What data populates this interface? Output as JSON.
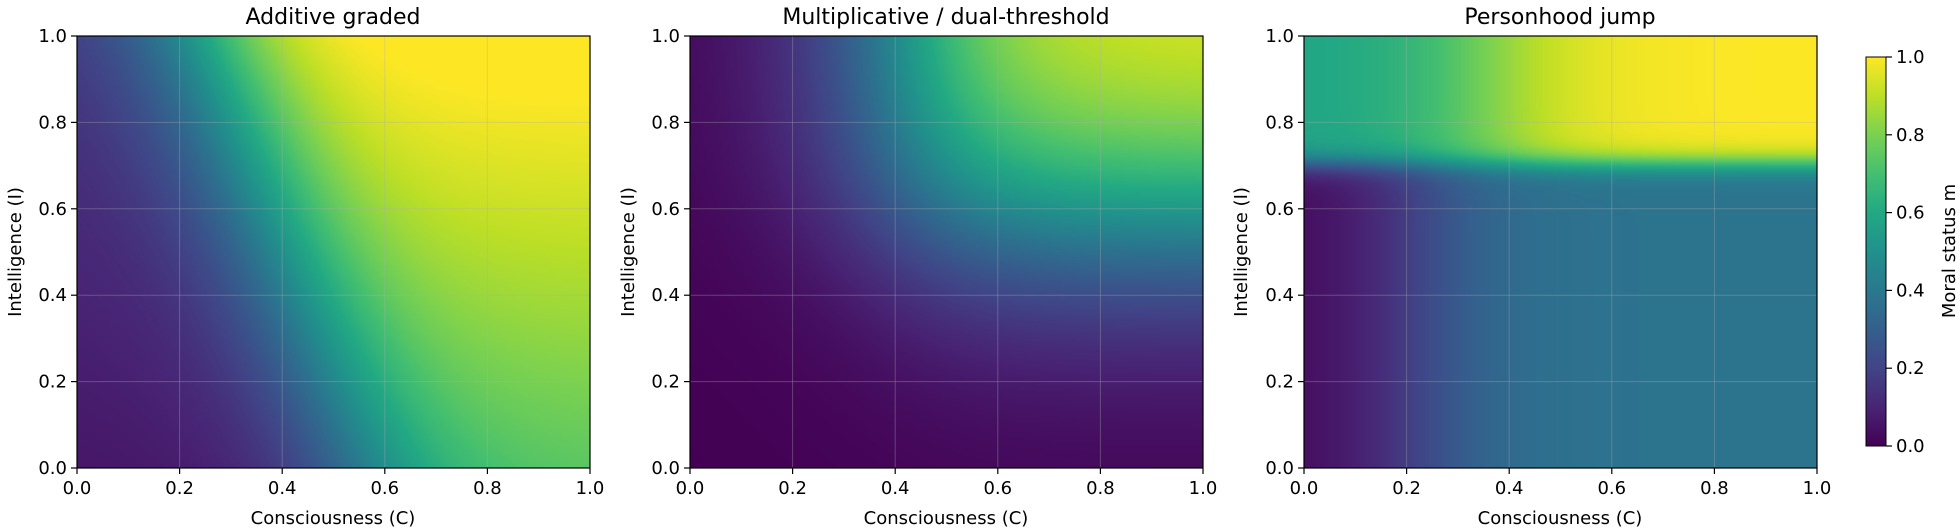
{
  "chart_data": {
    "type": "heatmap",
    "colormap": "viridis",
    "grid": true,
    "panels": [
      {
        "title": "Additive graded",
        "xlabel": "Consciousness (C)",
        "ylabel": "Intelligence (I)",
        "xlim": [
          0,
          1
        ],
        "ylim": [
          0,
          1
        ],
        "x_ticks": [
          "0.0",
          "0.2",
          "0.4",
          "0.6",
          "0.8",
          "1.0"
        ],
        "y_ticks": [
          "0.0",
          "0.2",
          "0.4",
          "0.6",
          "0.8",
          "1.0"
        ],
        "model": "additive_graded",
        "sample_values": [
          {
            "C": 0.0,
            "I": 0.0,
            "m": 0.08
          },
          {
            "C": 0.0,
            "I": 1.0,
            "m": 0.38
          },
          {
            "C": 0.5,
            "I": 0.2,
            "m": 0.55
          },
          {
            "C": 1.0,
            "I": 0.0,
            "m": 0.75
          },
          {
            "C": 1.0,
            "I": 1.0,
            "m": 1.0
          }
        ]
      },
      {
        "title": "Multiplicative / dual-threshold",
        "xlabel": "Consciousness (C)",
        "ylabel": "Intelligence (I)",
        "xlim": [
          0,
          1
        ],
        "ylim": [
          0,
          1
        ],
        "x_ticks": [
          "0.0",
          "0.2",
          "0.4",
          "0.6",
          "0.8",
          "1.0"
        ],
        "y_ticks": [
          "0.0",
          "0.2",
          "0.4",
          "0.6",
          "0.8",
          "1.0"
        ],
        "model": "multiplicative_dual_threshold",
        "sample_values": [
          {
            "C": 0.0,
            "I": 0.0,
            "m": 0.0
          },
          {
            "C": 0.0,
            "I": 1.0,
            "m": 0.05
          },
          {
            "C": 1.0,
            "I": 0.0,
            "m": 0.05
          },
          {
            "C": 1.0,
            "I": 0.5,
            "m": 0.45
          },
          {
            "C": 1.0,
            "I": 1.0,
            "m": 0.95
          }
        ]
      },
      {
        "title": "Personhood jump",
        "xlabel": "Consciousness (C)",
        "ylabel": "Intelligence (I)",
        "xlim": [
          0,
          1
        ],
        "ylim": [
          0,
          1
        ],
        "x_ticks": [
          "0.0",
          "0.2",
          "0.4",
          "0.6",
          "0.8",
          "1.0"
        ],
        "y_ticks": [
          "0.0",
          "0.2",
          "0.4",
          "0.6",
          "0.8",
          "1.0"
        ],
        "model": "personhood_jump",
        "personhood_threshold_I": 0.7,
        "sample_values": [
          {
            "C": 0.0,
            "I": 0.0,
            "m": 0.02
          },
          {
            "C": 1.0,
            "I": 0.5,
            "m": 0.38
          },
          {
            "C": 0.0,
            "I": 0.9,
            "m": 0.58
          },
          {
            "C": 0.5,
            "I": 0.9,
            "m": 0.9
          },
          {
            "C": 1.0,
            "I": 1.0,
            "m": 1.0
          }
        ]
      }
    ],
    "colorbar": {
      "label": "Moral status m",
      "range": [
        0,
        1
      ],
      "ticks": [
        "0.0",
        "0.2",
        "0.4",
        "0.6",
        "0.8",
        "1.0"
      ]
    }
  }
}
